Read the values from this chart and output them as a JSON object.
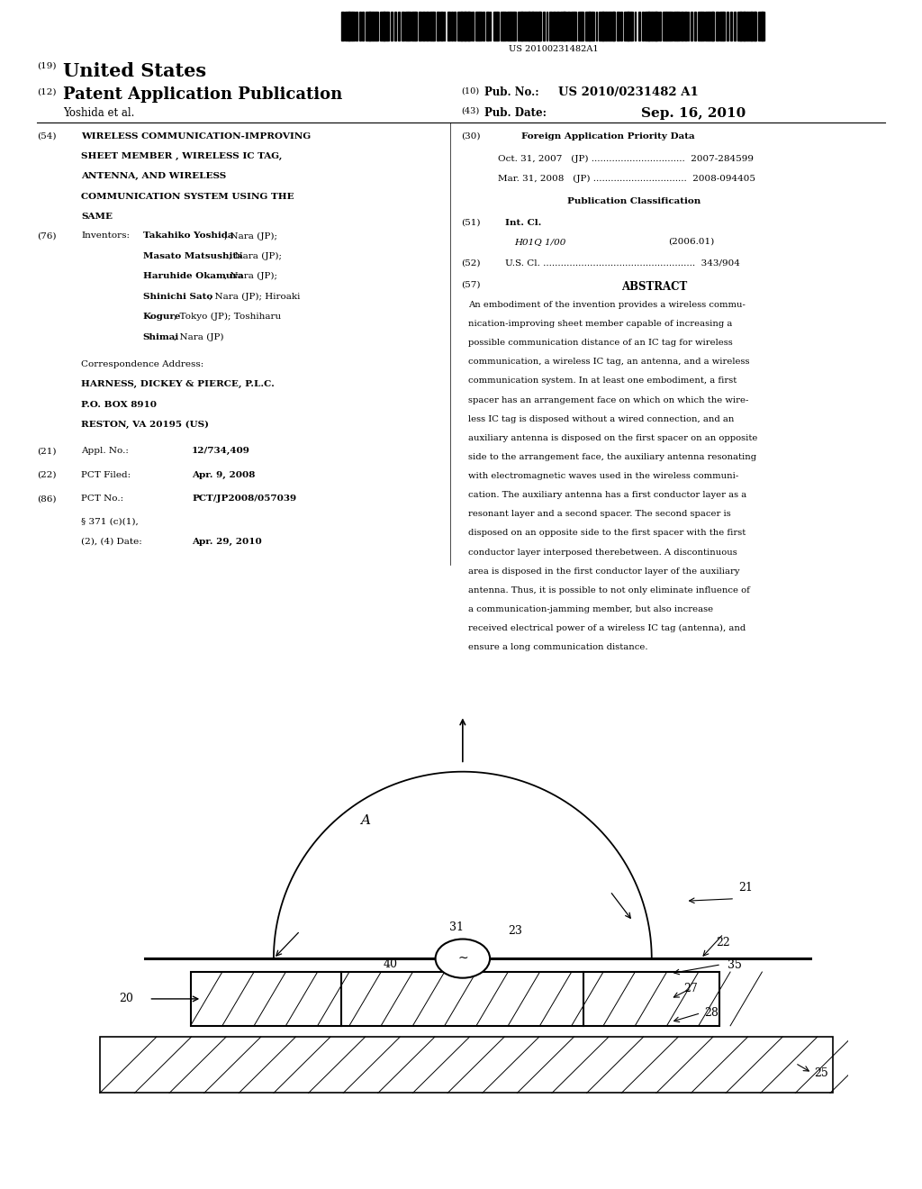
{
  "bg_color": "#ffffff",
  "barcode_text": "US 20100231482A1",
  "title_19": "(19)",
  "title_united_states": "United States",
  "title_12": "(12)",
  "title_pat_app_pub": "Patent Application Publication",
  "title_10": "(10)",
  "pub_no_label": "Pub. No.:",
  "pub_no": "US 2010/0231482 A1",
  "inventor_line": "Yoshida et al.",
  "title_43": "(43)",
  "pub_date_label": "Pub. Date:",
  "pub_date": "Sep. 16, 2010",
  "field_54_label": "(54)",
  "field_54_line1": "WIRELESS COMMUNICATION-IMPROVING",
  "field_54_line2": "SHEET MEMBER , WIRELESS IC TAG,",
  "field_54_line3": "ANTENNA, AND WIRELESS",
  "field_54_line4": "COMMUNICATION SYSTEM USING THE",
  "field_54_line5": "SAME",
  "field_30_label": "(30)",
  "field_30_title": "Foreign Application Priority Data",
  "priority_1": "Oct. 31, 2007   (JP) ................................  2007-284599",
  "priority_2": "Mar. 31, 2008   (JP) ................................  2008-094405",
  "pub_class_title": "Publication Classification",
  "field_51_label": "(51)",
  "field_51_intcl": "Int. Cl.",
  "field_51_class": "H01Q 1/00",
  "field_51_year": "(2006.01)",
  "field_52_label": "(52)",
  "field_52_uscl": "U.S. Cl. ....................................................  343/904",
  "field_57_label": "(57)",
  "field_57_abstract": "ABSTRACT",
  "abstract_lines": [
    "An embodiment of the invention provides a wireless commu-",
    "nication-improving sheet member capable of increasing a",
    "possible communication distance of an IC tag for wireless",
    "communication, a wireless IC tag, an antenna, and a wireless",
    "communication system. In at least one embodiment, a first",
    "spacer has an arrangement face on which on which the wire-",
    "less IC tag is disposed without a wired connection, and an",
    "auxiliary antenna is disposed on the first spacer on an opposite",
    "side to the arrangement face, the auxiliary antenna resonating",
    "with electromagnetic waves used in the wireless communi-",
    "cation. The auxiliary antenna has a first conductor layer as a",
    "resonant layer and a second spacer. The second spacer is",
    "disposed on an opposite side to the first spacer with the first",
    "conductor layer interposed therebetween. A discontinuous",
    "area is disposed in the first conductor layer of the auxiliary",
    "antenna. Thus, it is possible to not only eliminate influence of",
    "a communication-jamming member, but also increase",
    "received electrical power of a wireless IC tag (antenna), and",
    "ensure a long communication distance."
  ],
  "field_76_label": "(76)",
  "field_76_inventors": "Inventors:",
  "inv_bold": [
    "Takahiko Yoshida",
    "Masato Matsushita",
    "Haruhide Okamura",
    "Shinichi Sato",
    "Hiroaki\nKogure",
    "Toshiharu\nShimai"
  ],
  "inv_norm": [
    ", Nara (JP);",
    ", Nara (JP);",
    ", Nara (JP);",
    ", Nara (JP); Hiroaki",
    ", Tokyo (JP); Toshiharu",
    ", Nara (JP)"
  ],
  "inv_bold_flat": [
    "Takahiko Yoshida",
    "Masato Matsushita",
    "Haruhide Okamura",
    "Shinichi Sato",
    "Kogure",
    "Shimai"
  ],
  "inv_norm_flat": [
    ", Nara (JP);",
    ", Nara (JP);",
    ", Nara (JP);",
    ", Nara (JP); Hiroaki",
    ", Tokyo (JP); Toshiharu",
    ", Nara (JP)"
  ],
  "correspondence_label": "Correspondence Address:",
  "correspondence_firm": "HARNESS, DICKEY & PIERCE, P.L.C.",
  "correspondence_addr1": "P.O. BOX 8910",
  "correspondence_addr2": "RESTON, VA 20195 (US)",
  "field_21_label": "(21)",
  "field_21_name": "Appl. No.:",
  "field_21_value": "12/734,409",
  "field_22_label": "(22)",
  "field_22_name": "PCT Filed:",
  "field_22_value": "Apr. 9, 2008",
  "field_86_label": "(86)",
  "field_86_name": "PCT No.:",
  "field_86_value": "PCT/JP2008/057039",
  "field_86b_name1": "§ 371 (c)(1),",
  "field_86b_name2": "(2), (4) Date:",
  "field_86b_value": "Apr. 29, 2010"
}
